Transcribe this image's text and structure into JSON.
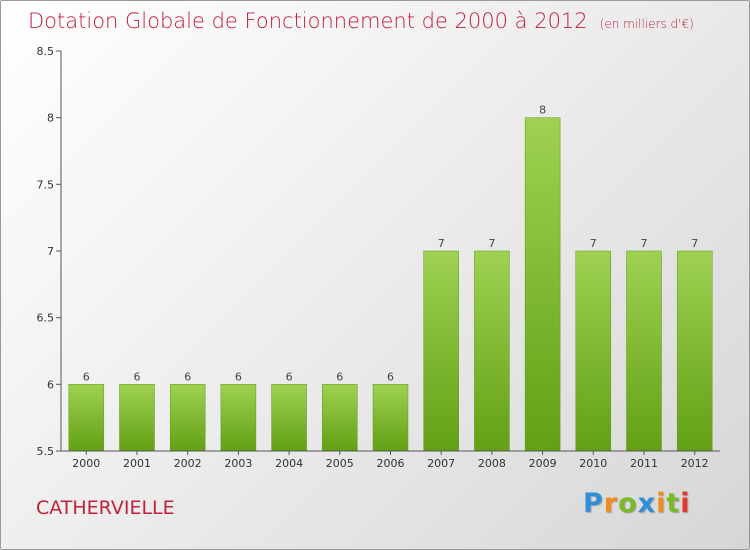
{
  "header": {
    "title": "Dotation Globale de Fonctionnement de 2000 à 2012",
    "unit": "(en milliers d'€)"
  },
  "footer": {
    "commune": "CATHERVIELLE",
    "brand": [
      "P",
      "r",
      "o",
      "x",
      "i",
      "t",
      "i"
    ]
  },
  "colors": {
    "title": "#c0203a",
    "bar_top": "#9fd152",
    "bar_bottom": "#62a014",
    "axis": "#555555"
  },
  "chart_data": {
    "type": "bar",
    "title": "Dotation Globale de Fonctionnement de 2000 à 2012",
    "subtitle": "(en milliers d'€)",
    "categories": [
      "2000",
      "2001",
      "2002",
      "2003",
      "2004",
      "2005",
      "2006",
      "2007",
      "2008",
      "2009",
      "2010",
      "2011",
      "2012"
    ],
    "values": [
      6,
      6,
      6,
      6,
      6,
      6,
      6,
      7,
      7,
      8,
      7,
      7,
      7
    ],
    "data_labels": [
      "6",
      "6",
      "6",
      "6",
      "6",
      "6",
      "6",
      "7",
      "7",
      "8",
      "7",
      "7",
      "7"
    ],
    "ylim": [
      5.5,
      8.5
    ],
    "yticks": [
      5.5,
      6,
      6.5,
      7,
      7.5,
      8,
      8.5
    ],
    "ytick_labels": [
      "5.5",
      "6",
      "6.5",
      "7",
      "7.5",
      "8",
      "8.5"
    ],
    "xlabel": "",
    "ylabel": "",
    "grid": false,
    "legend": "none"
  }
}
